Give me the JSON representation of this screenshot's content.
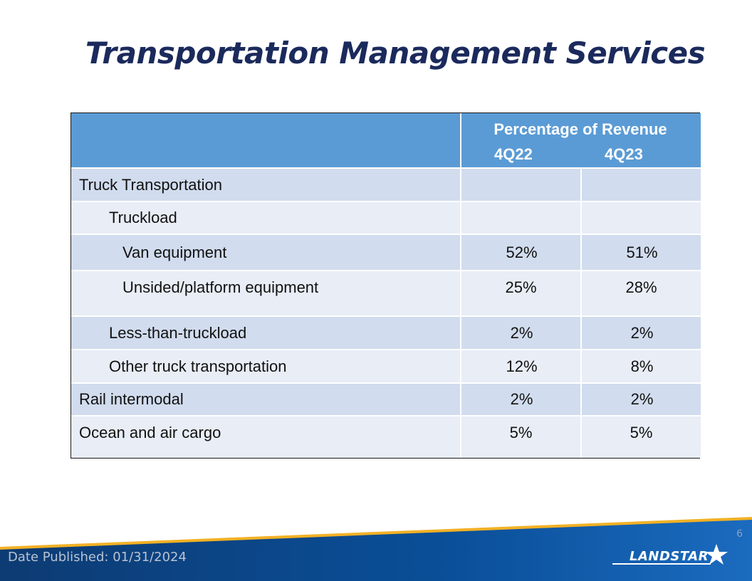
{
  "title": "Transportation Management Services",
  "table": {
    "header": {
      "label": "Percentage of Revenue",
      "col1": "4Q22",
      "col2": "4Q23"
    },
    "rows": [
      {
        "label": "Truck Transportation",
        "v1": "",
        "v2": ""
      },
      {
        "label": "Truckload",
        "v1": "",
        "v2": ""
      },
      {
        "label": "Van equipment",
        "v1": "52%",
        "v2": "51%"
      },
      {
        "label": "Unsided/platform equipment",
        "v1": "25%",
        "v2": "28%"
      },
      {
        "label": "Less-than-truckload",
        "v1": "2%",
        "v2": "2%"
      },
      {
        "label": "Other truck transportation",
        "v1": "12%",
        "v2": "8%"
      },
      {
        "label": "Rail intermodal",
        "v1": "2%",
        "v2": "2%"
      },
      {
        "label": "Ocean and air cargo",
        "v1": "5%",
        "v2": "5%"
      }
    ]
  },
  "footer": {
    "date_published": "Date Published:  01/31/2024",
    "page_number": "6",
    "logo_text": "LANDSTAR"
  },
  "colors": {
    "title": "#1b2a5c",
    "header_bg": "#5b9bd5",
    "row_dark": "#d1dcee",
    "row_light": "#e8edf6",
    "footer_blue": "#0a4a8c"
  }
}
